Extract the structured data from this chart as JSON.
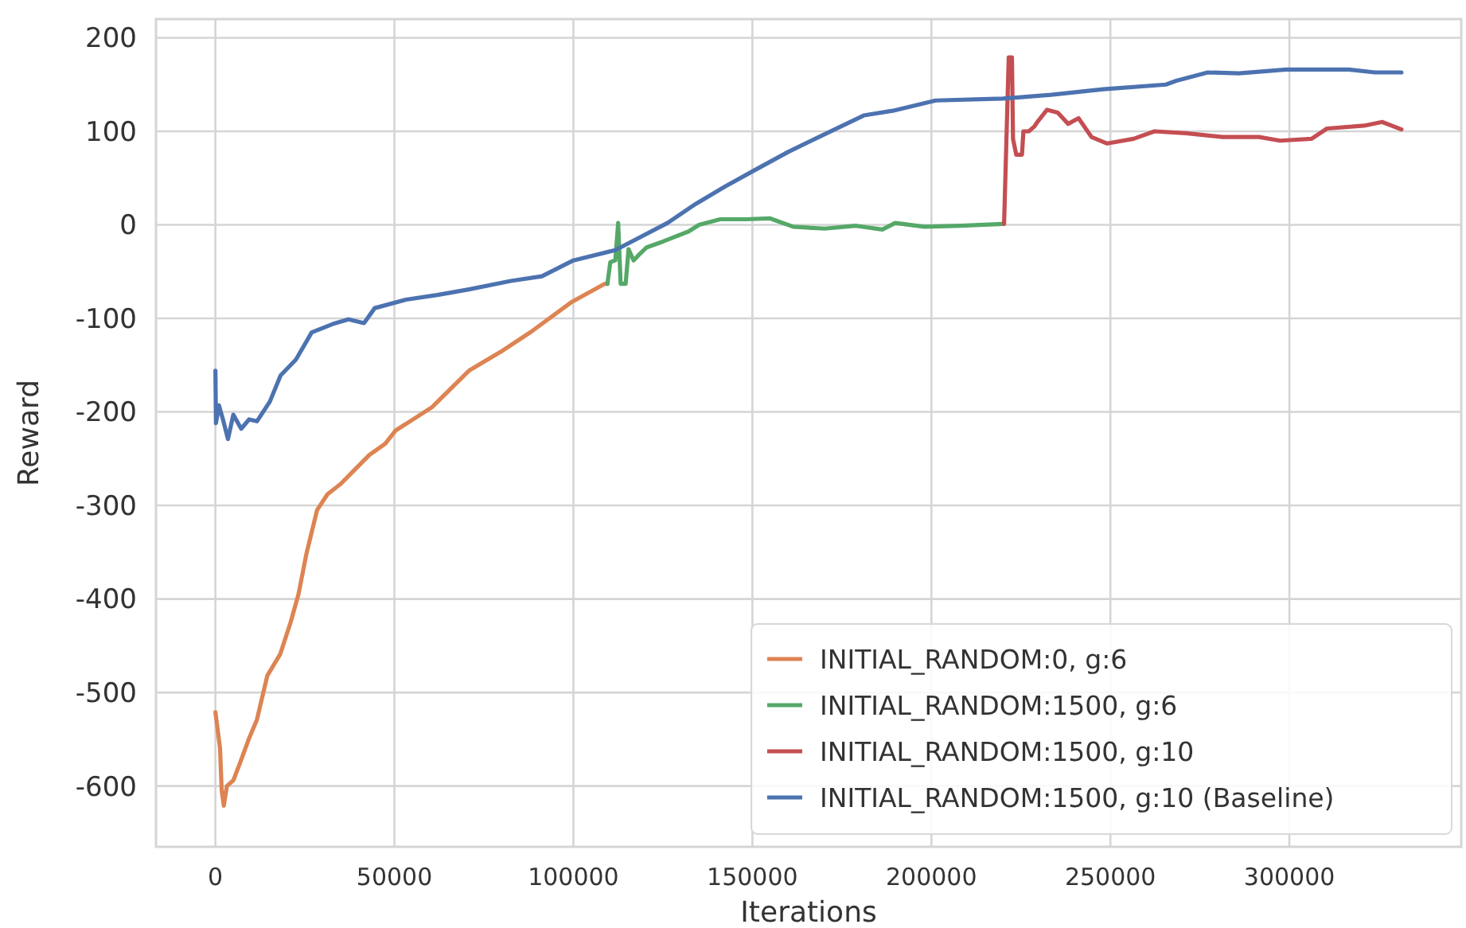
{
  "chart_data": {
    "type": "line",
    "xlabel": "Iterations",
    "ylabel": "Reward",
    "xlim": [
      -16600,
      348000
    ],
    "ylim": [
      -665,
      220
    ],
    "xticks": [
      0,
      50000,
      100000,
      150000,
      200000,
      250000,
      300000
    ],
    "yticks": [
      -600,
      -500,
      -400,
      -300,
      -200,
      -100,
      0,
      100,
      200
    ],
    "grid": true,
    "legend": "bottom right",
    "line_style": "solid",
    "marker": "none",
    "series": [
      {
        "name": "INITIAL_RANDOM:0, g:6",
        "color": "#dd8452",
        "x": [
          0,
          1300,
          1750,
          2350,
          3200,
          5000,
          7200,
          9400,
          11600,
          14500,
          18100,
          21000,
          23200,
          25400,
          28400,
          31300,
          35000,
          38600,
          43000,
          47400,
          50300,
          60500,
          70800,
          79600,
          88300,
          99300,
          108800,
          109500
        ],
        "values": [
          -521,
          -560,
          -605,
          -621,
          -600,
          -594,
          -572,
          -549,
          -529,
          -482,
          -459,
          -425,
          -395,
          -352,
          -305,
          -288,
          -277,
          -263,
          -246,
          -234,
          -220,
          -195,
          -156,
          -136,
          -114,
          -83,
          -63,
          -63
        ]
      },
      {
        "name": "INITIAL_RANDOM:1500, g:6",
        "color": "#55a868",
        "x": [
          109500,
          110300,
          111700,
          112500,
          113200,
          114600,
          115400,
          116800,
          118300,
          120500,
          124900,
          132200,
          135100,
          141000,
          148300,
          154800,
          161400,
          170200,
          178900,
          186300,
          189900,
          198000,
          208200,
          219900
        ],
        "values": [
          -63,
          -40,
          -38,
          2,
          -63,
          -63,
          -26,
          -38,
          -32,
          -24,
          -18,
          -7,
          0,
          6,
          6,
          7,
          -2,
          -4,
          -1,
          -5,
          2,
          -2,
          -1,
          1
        ]
      },
      {
        "name": "INITIAL_RANDOM:1500, g:10",
        "color": "#c44e52",
        "x": [
          220300,
          221600,
          222500,
          222800,
          223700,
          225300,
          225700,
          227200,
          228700,
          229800,
          232300,
          235300,
          238200,
          241100,
          244700,
          249100,
          256500,
          262300,
          271100,
          281300,
          291500,
          297400,
          306200,
          310500,
          320800,
          325900,
          331300
        ],
        "values": [
          1,
          179,
          179,
          92,
          75,
          75,
          100,
          100,
          105,
          111,
          123,
          120,
          108,
          114,
          94,
          87,
          92,
          100,
          98,
          94,
          94,
          90,
          92,
          103,
          106,
          110,
          102
        ]
      },
      {
        "name": "INITIAL_RANDOM:1500, g:10 (Baseline)",
        "color": "#4c72b0",
        "x": [
          0,
          150,
          1000,
          2100,
          3500,
          5000,
          7200,
          9400,
          11600,
          15200,
          18200,
          22500,
          26900,
          32800,
          37200,
          41500,
          44500,
          53200,
          62000,
          70800,
          82500,
          91200,
          100000,
          111700,
          126300,
          133600,
          142400,
          150400,
          160000,
          170200,
          181100,
          189200,
          201200,
          219900,
          233400,
          248000,
          265500,
          268400,
          277200,
          285900,
          299100,
          316600,
          323900,
          331300
        ],
        "values": [
          -156,
          -212,
          -193,
          -208,
          -229,
          -203,
          -218,
          -208,
          -210,
          -189,
          -161,
          -144,
          -115,
          -106,
          -101,
          -105,
          -89,
          -80,
          -75,
          -69,
          -60,
          -55,
          -38,
          -27,
          2,
          21,
          41,
          58,
          78,
          97,
          117,
          122,
          133,
          135,
          139,
          145,
          150,
          154,
          163,
          162,
          166,
          166,
          163,
          163
        ]
      }
    ]
  }
}
